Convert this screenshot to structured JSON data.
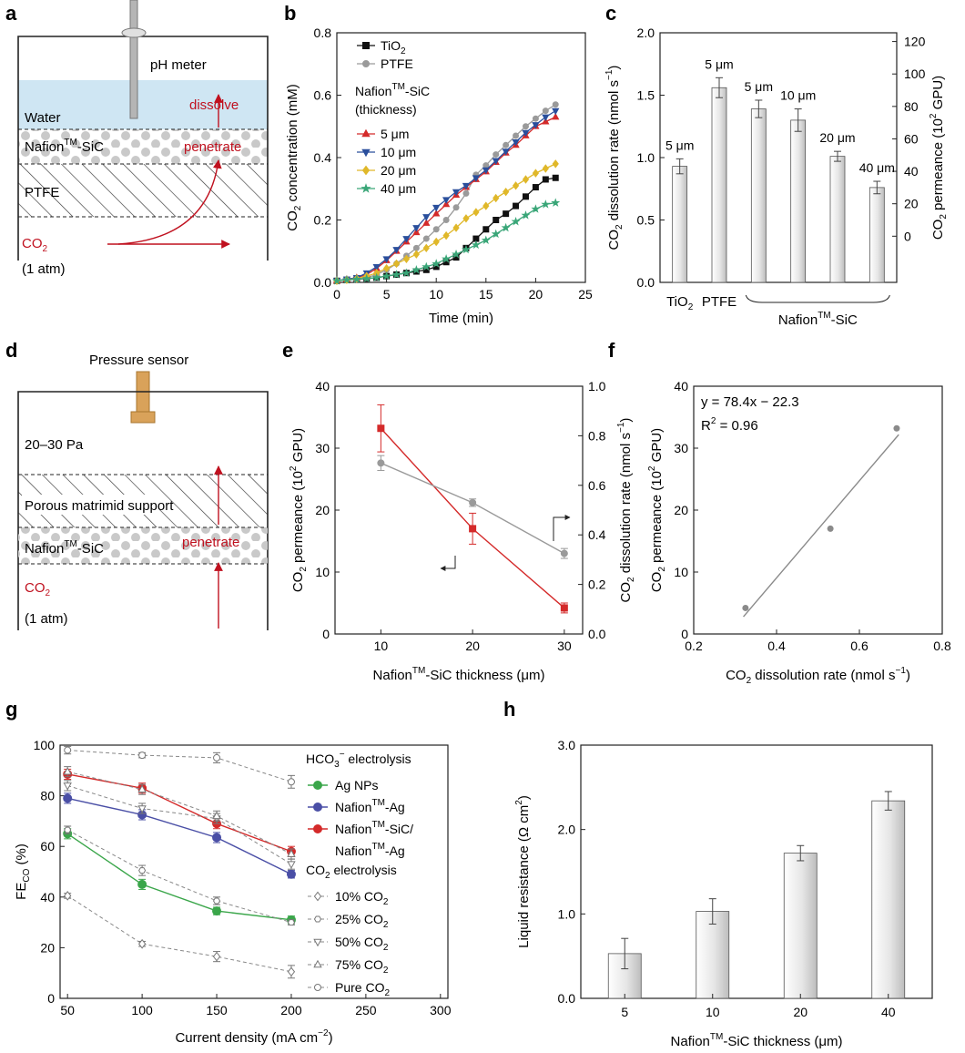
{
  "panel_letters": [
    "a",
    "b",
    "c",
    "d",
    "e",
    "f",
    "g",
    "h"
  ],
  "panel_a": {
    "labels": {
      "meter": "pH meter",
      "water": "Water",
      "dissolve": "dissolve",
      "nafion_base": "Nafion",
      "nafion_sup": "TM",
      "nafion_tail": "-SiC",
      "penetrate": "penetrate",
      "ptfe": "PTFE",
      "co2_base": "CO",
      "co2_sub": "2",
      "pressure": "(1 atm)"
    },
    "colors": {
      "water": "#cfe6f3",
      "accent": "#c0111f",
      "dot": "#c9c9c9"
    }
  },
  "panel_d": {
    "labels": {
      "sensor": "Pressure sensor",
      "pa": "20–30 Pa",
      "support": "Porous matrimid support",
      "nafion_base": "Nafion",
      "nafion_sup": "TM",
      "nafion_tail": "-SiC",
      "penetrate": "penetrate",
      "co2_base": "CO",
      "co2_sub": "2",
      "pressure": "(1 atm)"
    },
    "colors": {
      "sensor": "#d9a25a",
      "accent": "#c0111f"
    }
  },
  "chart_data": [
    {
      "id": "b",
      "type": "line",
      "xlabel": "Time (min)",
      "ylabel": "CO2 concentration (mM)",
      "xlim": [
        0,
        25
      ],
      "ylim": [
        0,
        0.8
      ],
      "xticks": [
        0,
        5,
        10,
        15,
        20,
        25
      ],
      "yticks": [
        0.0,
        0.2,
        0.4,
        0.6,
        0.8
      ],
      "legend_group_title": "Nafion™-SiC (thickness)",
      "x": [
        0,
        1,
        2,
        3,
        4,
        5,
        6,
        7,
        8,
        9,
        10,
        11,
        12,
        13,
        14,
        15,
        16,
        17,
        18,
        19,
        20,
        21,
        22
      ],
      "series": [
        {
          "name": "TiO2",
          "color": "#111111",
          "marker": "square",
          "values": [
            0.005,
            0.008,
            0.01,
            0.012,
            0.015,
            0.02,
            0.025,
            0.03,
            0.035,
            0.04,
            0.05,
            0.065,
            0.08,
            0.11,
            0.14,
            0.17,
            0.2,
            0.22,
            0.245,
            0.275,
            0.305,
            0.33,
            0.335
          ]
        },
        {
          "name": "PTFE",
          "color": "#9a9a9a",
          "marker": "circle",
          "values": [
            0.005,
            0.008,
            0.01,
            0.015,
            0.025,
            0.04,
            0.06,
            0.085,
            0.11,
            0.14,
            0.17,
            0.2,
            0.24,
            0.285,
            0.345,
            0.375,
            0.41,
            0.44,
            0.47,
            0.5,
            0.525,
            0.55,
            0.57
          ]
        },
        {
          "name": "5 μm",
          "color": "#d42a2a",
          "marker": "triangle-up",
          "values": [
            0.005,
            0.01,
            0.015,
            0.025,
            0.045,
            0.07,
            0.1,
            0.13,
            0.16,
            0.19,
            0.22,
            0.25,
            0.28,
            0.305,
            0.33,
            0.355,
            0.385,
            0.415,
            0.44,
            0.47,
            0.5,
            0.515,
            0.53
          ]
        },
        {
          "name": "10 μm",
          "color": "#2a4f9c",
          "marker": "triangle-down",
          "values": [
            0.005,
            0.01,
            0.015,
            0.03,
            0.05,
            0.075,
            0.105,
            0.14,
            0.175,
            0.21,
            0.24,
            0.265,
            0.29,
            0.31,
            0.335,
            0.36,
            0.39,
            0.42,
            0.45,
            0.48,
            0.505,
            0.53,
            0.55
          ]
        },
        {
          "name": "20 μm",
          "color": "#e0b82a",
          "marker": "diamond",
          "values": [
            0.005,
            0.008,
            0.012,
            0.02,
            0.03,
            0.045,
            0.06,
            0.075,
            0.09,
            0.11,
            0.13,
            0.15,
            0.175,
            0.205,
            0.225,
            0.245,
            0.27,
            0.29,
            0.31,
            0.33,
            0.35,
            0.365,
            0.38
          ]
        },
        {
          "name": "40 μm",
          "color": "#3aa678",
          "marker": "star",
          "values": [
            0.005,
            0.008,
            0.01,
            0.012,
            0.015,
            0.02,
            0.025,
            0.03,
            0.04,
            0.05,
            0.06,
            0.075,
            0.09,
            0.105,
            0.12,
            0.135,
            0.155,
            0.175,
            0.195,
            0.215,
            0.235,
            0.25,
            0.255
          ]
        }
      ]
    },
    {
      "id": "c",
      "type": "bar",
      "ylabel": "CO2 dissolution rate (nmol s-1)",
      "ylabel_right": "CO2 permeance (10^2 GPU)",
      "ylim": [
        0,
        2.0
      ],
      "yticks": [
        0.0,
        0.5,
        1.0,
        1.5,
        2.0
      ],
      "right_ticks": [
        0,
        20,
        40,
        60,
        80,
        100,
        120
      ],
      "categories": [
        "TiO2",
        "PTFE",
        "5 μm",
        "10 μm",
        "20 μm",
        "40 μm"
      ],
      "bar_labels": [
        "5 μm",
        "5 μm",
        "5 μm",
        "10 μm",
        "20 μm",
        "40 μm"
      ],
      "values": [
        0.93,
        1.56,
        1.39,
        1.3,
        1.01,
        0.76
      ],
      "errors": [
        0.06,
        0.08,
        0.07,
        0.09,
        0.04,
        0.05
      ],
      "group_label_base": "Nafion",
      "group_label_sup": "TM",
      "group_label_tail": "-SiC"
    },
    {
      "id": "e",
      "type": "line",
      "xlabel": "Nafion™-SiC thickness (μm)",
      "ylabel": "CO2 permeance (10^2 GPU)",
      "ylabel_right": "CO2 dissolution rate (nmol s-1)",
      "xlim": [
        5,
        32
      ],
      "ylim": [
        0,
        40
      ],
      "right_ylim": [
        0,
        1.0
      ],
      "xticks": [
        10,
        20,
        30
      ],
      "yticks": [
        0,
        10,
        20,
        30,
        40
      ],
      "right_ticks": [
        0.0,
        0.2,
        0.4,
        0.6,
        0.8,
        1.0
      ],
      "x": [
        10,
        20,
        30
      ],
      "series": [
        {
          "name": "CO2 permeance",
          "color": "#d42a2a",
          "axis": "left",
          "values": [
            33.2,
            17.0,
            4.2
          ],
          "errors": [
            3.8,
            2.5,
            0.8
          ]
        },
        {
          "name": "CO2 dissolution rate",
          "color": "#9a9a9a",
          "axis": "right",
          "values": [
            0.69,
            0.53,
            0.325
          ],
          "errors": [
            0.03,
            0.015,
            0.02
          ]
        }
      ]
    },
    {
      "id": "f",
      "type": "scatter",
      "xlabel": "CO2 dissolution rate (nmol s-1)",
      "ylabel": "CO2 permeance (10^2 GPU)",
      "xlim": [
        0.2,
        0.8
      ],
      "ylim": [
        0,
        40
      ],
      "xticks": [
        0.2,
        0.4,
        0.6,
        0.8
      ],
      "yticks": [
        0,
        10,
        20,
        30,
        40
      ],
      "points": [
        {
          "x": 0.325,
          "y": 4.2
        },
        {
          "x": 0.53,
          "y": 17.0
        },
        {
          "x": 0.69,
          "y": 33.2
        }
      ],
      "fit": {
        "slope": 78.4,
        "intercept": -22.3
      },
      "equation": "y = 78.4x − 22.3",
      "r2": "R² = 0.96"
    },
    {
      "id": "g",
      "type": "line",
      "xlabel": "Current density (mA cm−2)",
      "ylabel": "FE_CO (%)",
      "xlim": [
        45,
        305
      ],
      "ylim": [
        0,
        100
      ],
      "xticks": [
        50,
        100,
        150,
        200,
        250,
        300
      ],
      "yticks": [
        0,
        20,
        40,
        60,
        80,
        100
      ],
      "x": [
        50,
        100,
        150,
        200
      ],
      "legend_title_1": "HCO3− electrolysis",
      "legend_title_2": "CO2 electrolysis",
      "series": [
        {
          "name": "Ag NPs",
          "color": "#3aa64a",
          "style": "solid",
          "marker": "circle",
          "values": [
            65,
            45,
            34.5,
            31
          ],
          "errors": [
            2,
            2,
            1.5,
            1.5
          ]
        },
        {
          "name": "Nafion™-Ag",
          "color": "#4a4fa6",
          "style": "solid",
          "marker": "circle",
          "values": [
            79,
            72.5,
            63.5,
            49
          ],
          "errors": [
            2,
            2,
            2,
            1.5
          ]
        },
        {
          "name": "Nafion™-SiC/ Nafion™-Ag",
          "color": "#d42a2a",
          "style": "solid",
          "marker": "circle",
          "values": [
            88.5,
            83,
            69,
            58
          ],
          "errors": [
            2,
            2,
            2,
            2
          ]
        },
        {
          "name": "10% CO2",
          "color": "#888888",
          "style": "dashed",
          "marker": "diamond",
          "values": [
            40.5,
            21.5,
            16.5,
            10.5
          ],
          "errors": [
            1,
            1,
            2,
            2.5
          ]
        },
        {
          "name": "25% CO2",
          "color": "#888888",
          "style": "dashed",
          "marker": "hexagon",
          "values": [
            66.5,
            50.5,
            38.5,
            30
          ],
          "errors": [
            1.5,
            2,
            1.5,
            1
          ]
        },
        {
          "name": "50% CO2",
          "color": "#888888",
          "style": "dashed",
          "marker": "triangle-down",
          "values": [
            84,
            75,
            71,
            53
          ],
          "errors": [
            2,
            2,
            2,
            2
          ]
        },
        {
          "name": "75% CO2",
          "color": "#888888",
          "style": "dashed",
          "marker": "triangle-up",
          "values": [
            89.5,
            82.5,
            72,
            57
          ],
          "errors": [
            2,
            2,
            2,
            2
          ]
        },
        {
          "name": "Pure CO2",
          "color": "#888888",
          "style": "dashed",
          "marker": "circle",
          "values": [
            98,
            96,
            95,
            85.5
          ],
          "errors": [
            1.5,
            1,
            2,
            2.5
          ]
        }
      ]
    },
    {
      "id": "h",
      "type": "bar",
      "xlabel": "Nafion™-SiC thickness (μm)",
      "ylabel": "Liquid resistance (Ω cm²)",
      "ylim": [
        0,
        3.0
      ],
      "yticks": [
        0.0,
        1.0,
        2.0,
        3.0
      ],
      "categories": [
        "5",
        "10",
        "20",
        "40"
      ],
      "values": [
        0.53,
        1.03,
        1.72,
        2.34
      ],
      "errors": [
        0.18,
        0.15,
        0.09,
        0.11
      ]
    }
  ]
}
